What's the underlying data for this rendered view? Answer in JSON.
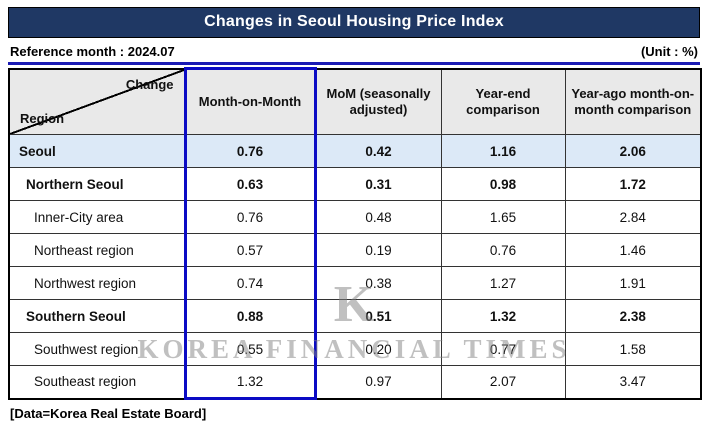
{
  "title": "Changes in Seoul Housing Price Index",
  "reference_month": "Reference month : 2024.07",
  "unit": "(Unit : %)",
  "footer": "[Data=Korea Real Estate Board]",
  "watermark": {
    "logo": "K",
    "text": "KOREA FINANCIAL TIMES"
  },
  "colors": {
    "title_bg": "#1f3864",
    "accent_line": "#1a1ab4",
    "highlight_border": "#0b0bc4",
    "header_bg": "#e9e9e9",
    "seoul_row_bg": "#dce9f7"
  },
  "table": {
    "corner": {
      "top": "Change",
      "bottom": "Region"
    },
    "columns": [
      "Month-on-Month",
      "MoM (seasonally adjusted)",
      "Year-end comparison",
      "Year-ago month-on-month comparison"
    ],
    "rows": [
      {
        "region": "Seoul",
        "values": [
          "0.76",
          "0.42",
          "1.16",
          "2.06"
        ]
      },
      {
        "region": "Northern Seoul",
        "values": [
          "0.63",
          "0.31",
          "0.98",
          "1.72"
        ]
      },
      {
        "region": "Inner-City area",
        "values": [
          "0.76",
          "0.48",
          "1.65",
          "2.84"
        ]
      },
      {
        "region": "Northeast region",
        "values": [
          "0.57",
          "0.19",
          "0.76",
          "1.46"
        ]
      },
      {
        "region": "Northwest region",
        "values": [
          "0.74",
          "0.38",
          "1.27",
          "1.91"
        ]
      },
      {
        "region": "Southern Seoul",
        "values": [
          "0.88",
          "0.51",
          "1.32",
          "2.38"
        ]
      },
      {
        "region": "Southwest region",
        "values": [
          "0.55",
          "0.20",
          "0.77",
          "1.58"
        ]
      },
      {
        "region": "Southeast region",
        "values": [
          "1.32",
          "0.97",
          "2.07",
          "3.47"
        ]
      }
    ]
  },
  "chart_data": {
    "type": "table",
    "title": "Changes in Seoul Housing Price Index",
    "reference_month": "2024.07",
    "unit": "%",
    "columns": [
      "Month-on-Month",
      "MoM (seasonally adjusted)",
      "Year-end comparison",
      "Year-ago month-on-month comparison"
    ],
    "categories": [
      "Seoul",
      "Northern Seoul",
      "Inner-City area",
      "Northeast region",
      "Northwest region",
      "Southern Seoul",
      "Southwest region",
      "Southeast region"
    ],
    "series": [
      {
        "name": "Month-on-Month",
        "values": [
          0.76,
          0.63,
          0.76,
          0.57,
          0.74,
          0.88,
          0.55,
          1.32
        ]
      },
      {
        "name": "MoM (seasonally adjusted)",
        "values": [
          0.42,
          0.31,
          0.48,
          0.19,
          0.38,
          0.51,
          0.2,
          0.97
        ]
      },
      {
        "name": "Year-end comparison",
        "values": [
          1.16,
          0.98,
          1.65,
          0.76,
          1.27,
          1.32,
          0.77,
          2.07
        ]
      },
      {
        "name": "Year-ago month-on-month comparison",
        "values": [
          2.06,
          1.72,
          2.84,
          1.46,
          1.91,
          2.38,
          1.58,
          3.47
        ]
      }
    ],
    "source": "Korea Real Estate Board"
  }
}
